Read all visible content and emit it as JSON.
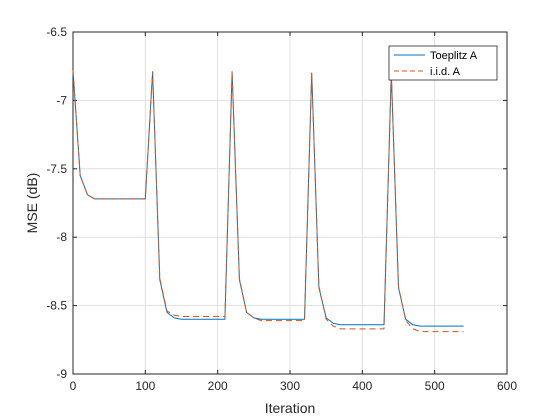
{
  "chart_data": {
    "type": "line",
    "title": "",
    "xlabel": "Iteration",
    "ylabel": "MSE (dB)",
    "xlim": [
      0,
      600
    ],
    "ylim": [
      -9,
      -6.5
    ],
    "xticks": [
      0,
      100,
      200,
      300,
      400,
      500,
      600
    ],
    "xtick_labels": [
      "0",
      "100",
      "200",
      "300",
      "400",
      "500",
      "600"
    ],
    "yticks": [
      -9,
      -8.5,
      -8,
      -7.5,
      -7,
      -6.5
    ],
    "ytick_labels": [
      "-9",
      "-8.5",
      "-8",
      "-7.5",
      "-7",
      "-6.5"
    ],
    "grid": true,
    "legend_position": "top-right",
    "colors": {
      "toeplitz": "#0072BD",
      "iid": "#D95319",
      "grid": "#dfdfdf",
      "axis": "#262626"
    },
    "series": [
      {
        "name": "Toeplitz A",
        "style": "solid",
        "x": [
          0,
          10,
          20,
          30,
          40,
          50,
          60,
          70,
          80,
          90,
          100,
          110,
          120,
          130,
          140,
          150,
          160,
          170,
          180,
          190,
          200,
          210,
          220,
          230,
          240,
          250,
          260,
          270,
          280,
          290,
          300,
          310,
          320,
          330,
          340,
          350,
          360,
          370,
          380,
          390,
          400,
          410,
          420,
          430,
          440,
          450,
          460,
          470,
          480,
          490,
          500,
          510,
          520,
          530,
          540
        ],
        "y": [
          -6.78,
          -7.55,
          -7.69,
          -7.72,
          -7.72,
          -7.72,
          -7.72,
          -7.72,
          -7.72,
          -7.72,
          -7.72,
          -6.79,
          -8.31,
          -8.55,
          -8.59,
          -8.6,
          -8.6,
          -8.6,
          -8.6,
          -8.6,
          -8.6,
          -8.6,
          -6.79,
          -8.31,
          -8.55,
          -8.59,
          -8.6,
          -8.6,
          -8.6,
          -8.6,
          -8.6,
          -8.6,
          -8.6,
          -6.8,
          -8.37,
          -8.59,
          -8.63,
          -8.64,
          -8.64,
          -8.64,
          -8.64,
          -8.64,
          -8.64,
          -8.64,
          -6.8,
          -8.37,
          -8.6,
          -8.64,
          -8.65,
          -8.65,
          -8.65,
          -8.65,
          -8.65,
          -8.65,
          -8.65
        ]
      },
      {
        "name": "i.i.d. A",
        "style": "dashed",
        "x": [
          0,
          10,
          20,
          30,
          40,
          50,
          60,
          70,
          80,
          90,
          100,
          110,
          120,
          130,
          140,
          150,
          160,
          170,
          180,
          190,
          200,
          210,
          220,
          230,
          240,
          250,
          260,
          270,
          280,
          290,
          300,
          310,
          320,
          330,
          340,
          350,
          360,
          370,
          380,
          390,
          400,
          410,
          420,
          430,
          440,
          450,
          460,
          470,
          480,
          490,
          500,
          510,
          520,
          530,
          540
        ],
        "y": [
          -6.78,
          -7.55,
          -7.69,
          -7.72,
          -7.72,
          -7.72,
          -7.72,
          -7.72,
          -7.72,
          -7.72,
          -7.72,
          -6.79,
          -8.3,
          -8.54,
          -8.57,
          -8.58,
          -8.58,
          -8.58,
          -8.58,
          -8.58,
          -8.58,
          -8.58,
          -6.79,
          -8.3,
          -8.55,
          -8.59,
          -8.61,
          -8.61,
          -8.61,
          -8.61,
          -8.61,
          -8.61,
          -8.61,
          -6.8,
          -8.36,
          -8.6,
          -8.65,
          -8.67,
          -8.67,
          -8.67,
          -8.67,
          -8.67,
          -8.67,
          -8.67,
          -6.8,
          -8.36,
          -8.61,
          -8.67,
          -8.69,
          -8.69,
          -8.69,
          -8.69,
          -8.69,
          -8.69,
          -8.69
        ]
      }
    ]
  }
}
